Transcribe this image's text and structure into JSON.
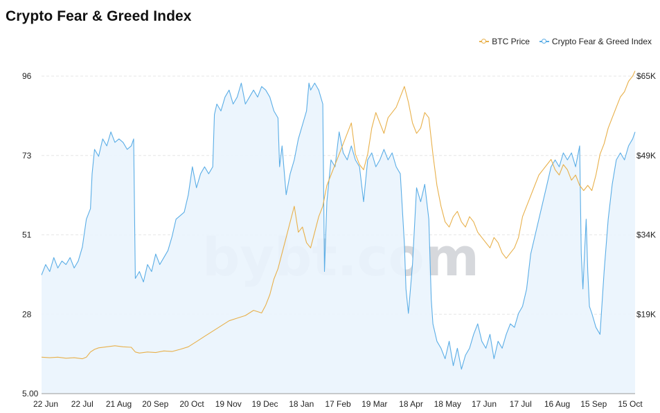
{
  "title": "Crypto Fear & Greed Index",
  "watermark": "bybt.com",
  "legend": [
    {
      "label": "BTC Price",
      "color": "#e8b04a"
    },
    {
      "label": "Crypto Fear & Greed Index",
      "color": "#5aade6"
    }
  ],
  "chart_data": {
    "type": "line",
    "title": "Crypto Fear & Greed Index",
    "x_tick_labels": [
      "22 Jun",
      "22 Jul",
      "21 Aug",
      "20 Sep",
      "20 Oct",
      "19 Nov",
      "19 Dec",
      "18 Jan",
      "17 Feb",
      "19 Mar",
      "18 Apr",
      "18 May",
      "17 Jun",
      "17 Jul",
      "16 Aug",
      "15 Sep",
      "15 Oct"
    ],
    "y_left": {
      "ticks": [
        "5.00",
        "28",
        "51",
        "73",
        "96"
      ],
      "range": [
        5,
        96
      ]
    },
    "y_right": {
      "ticks": [
        "$19K",
        "$34K",
        "$49K",
        "$65K"
      ],
      "range": [
        4000,
        65000
      ]
    },
    "grid": true,
    "legend_position": "top-right",
    "series": [
      {
        "name": "Crypto Fear & Greed Index",
        "axis": "left",
        "color": "#5aade6",
        "fill": true,
        "values": [
          [
            0,
            39
          ],
          [
            5,
            42
          ],
          [
            10,
            40
          ],
          [
            15,
            44
          ],
          [
            20,
            41
          ],
          [
            25,
            43
          ],
          [
            30,
            42
          ],
          [
            35,
            44
          ],
          [
            40,
            41
          ],
          [
            45,
            43
          ],
          [
            50,
            47
          ],
          [
            55,
            55
          ],
          [
            60,
            58
          ],
          [
            62,
            68
          ],
          [
            65,
            75
          ],
          [
            70,
            73
          ],
          [
            75,
            78
          ],
          [
            80,
            76
          ],
          [
            85,
            80
          ],
          [
            90,
            77
          ],
          [
            95,
            78
          ],
          [
            100,
            77
          ],
          [
            105,
            75
          ],
          [
            110,
            76
          ],
          [
            113,
            78
          ],
          [
            115,
            38
          ],
          [
            120,
            40
          ],
          [
            125,
            37
          ],
          [
            130,
            42
          ],
          [
            135,
            40
          ],
          [
            140,
            45
          ],
          [
            145,
            42
          ],
          [
            150,
            44
          ],
          [
            155,
            46
          ],
          [
            160,
            50
          ],
          [
            165,
            55
          ],
          [
            170,
            56
          ],
          [
            175,
            57
          ],
          [
            180,
            62
          ],
          [
            185,
            70
          ],
          [
            190,
            64
          ],
          [
            195,
            68
          ],
          [
            200,
            70
          ],
          [
            205,
            68
          ],
          [
            210,
            70
          ],
          [
            212,
            85
          ],
          [
            215,
            88
          ],
          [
            220,
            86
          ],
          [
            225,
            90
          ],
          [
            230,
            92
          ],
          [
            235,
            88
          ],
          [
            240,
            90
          ],
          [
            245,
            94
          ],
          [
            250,
            88
          ],
          [
            255,
            90
          ],
          [
            260,
            92
          ],
          [
            265,
            90
          ],
          [
            270,
            93
          ],
          [
            275,
            92
          ],
          [
            280,
            90
          ],
          [
            285,
            86
          ],
          [
            290,
            84
          ],
          [
            292,
            70
          ],
          [
            295,
            76
          ],
          [
            300,
            62
          ],
          [
            305,
            68
          ],
          [
            310,
            72
          ],
          [
            315,
            78
          ],
          [
            320,
            82
          ],
          [
            325,
            86
          ],
          [
            328,
            94
          ],
          [
            330,
            92
          ],
          [
            335,
            94
          ],
          [
            340,
            92
          ],
          [
            345,
            88
          ],
          [
            347,
            40
          ],
          [
            350,
            60
          ],
          [
            355,
            72
          ],
          [
            360,
            70
          ],
          [
            365,
            80
          ],
          [
            370,
            74
          ],
          [
            375,
            72
          ],
          [
            380,
            76
          ],
          [
            385,
            72
          ],
          [
            390,
            70
          ],
          [
            395,
            60
          ],
          [
            400,
            72
          ],
          [
            405,
            74
          ],
          [
            410,
            70
          ],
          [
            415,
            72
          ],
          [
            420,
            75
          ],
          [
            425,
            72
          ],
          [
            430,
            74
          ],
          [
            435,
            70
          ],
          [
            440,
            68
          ],
          [
            445,
            48
          ],
          [
            447,
            35
          ],
          [
            450,
            28
          ],
          [
            455,
            42
          ],
          [
            460,
            64
          ],
          [
            465,
            60
          ],
          [
            470,
            65
          ],
          [
            475,
            55
          ],
          [
            478,
            32
          ],
          [
            480,
            25
          ],
          [
            485,
            20
          ],
          [
            490,
            18
          ],
          [
            495,
            15
          ],
          [
            500,
            20
          ],
          [
            505,
            13
          ],
          [
            510,
            18
          ],
          [
            515,
            12
          ],
          [
            520,
            16
          ],
          [
            525,
            18
          ],
          [
            530,
            22
          ],
          [
            535,
            25
          ],
          [
            540,
            20
          ],
          [
            545,
            18
          ],
          [
            550,
            22
          ],
          [
            555,
            15
          ],
          [
            560,
            20
          ],
          [
            565,
            18
          ],
          [
            570,
            22
          ],
          [
            575,
            25
          ],
          [
            580,
            24
          ],
          [
            585,
            28
          ],
          [
            590,
            30
          ],
          [
            595,
            35
          ],
          [
            600,
            45
          ],
          [
            605,
            50
          ],
          [
            610,
            55
          ],
          [
            615,
            60
          ],
          [
            620,
            65
          ],
          [
            625,
            70
          ],
          [
            630,
            72
          ],
          [
            635,
            70
          ],
          [
            640,
            74
          ],
          [
            645,
            72
          ],
          [
            650,
            74
          ],
          [
            655,
            70
          ],
          [
            660,
            76
          ],
          [
            662,
            45
          ],
          [
            664,
            35
          ],
          [
            666,
            45
          ],
          [
            668,
            55
          ],
          [
            670,
            40
          ],
          [
            672,
            30
          ],
          [
            675,
            28
          ],
          [
            680,
            24
          ],
          [
            685,
            22
          ],
          [
            690,
            40
          ],
          [
            695,
            55
          ],
          [
            700,
            65
          ],
          [
            705,
            72
          ],
          [
            710,
            74
          ],
          [
            715,
            72
          ],
          [
            720,
            76
          ],
          [
            725,
            78
          ],
          [
            728,
            80
          ]
        ]
      },
      {
        "name": "BTC Price",
        "axis": "right",
        "color": "#e8b04a",
        "fill": false,
        "values": [
          [
            0,
            11000
          ],
          [
            10,
            10900
          ],
          [
            20,
            11000
          ],
          [
            30,
            10800
          ],
          [
            40,
            10900
          ],
          [
            50,
            10700
          ],
          [
            55,
            11000
          ],
          [
            60,
            12000
          ],
          [
            65,
            12500
          ],
          [
            70,
            12800
          ],
          [
            80,
            13000
          ],
          [
            90,
            13200
          ],
          [
            100,
            13000
          ],
          [
            110,
            12900
          ],
          [
            115,
            12000
          ],
          [
            120,
            11800
          ],
          [
            130,
            12000
          ],
          [
            140,
            11900
          ],
          [
            150,
            12200
          ],
          [
            160,
            12100
          ],
          [
            170,
            12500
          ],
          [
            180,
            13000
          ],
          [
            190,
            14000
          ],
          [
            200,
            15000
          ],
          [
            210,
            16000
          ],
          [
            220,
            17000
          ],
          [
            230,
            18000
          ],
          [
            240,
            18500
          ],
          [
            250,
            19000
          ],
          [
            260,
            20000
          ],
          [
            270,
            19500
          ],
          [
            275,
            21000
          ],
          [
            280,
            23000
          ],
          [
            285,
            26000
          ],
          [
            290,
            28000
          ],
          [
            295,
            31000
          ],
          [
            300,
            34000
          ],
          [
            305,
            37000
          ],
          [
            310,
            40000
          ],
          [
            315,
            35000
          ],
          [
            320,
            36000
          ],
          [
            325,
            33000
          ],
          [
            330,
            32000
          ],
          [
            335,
            35000
          ],
          [
            340,
            38000
          ],
          [
            345,
            40000
          ],
          [
            350,
            44000
          ],
          [
            355,
            46000
          ],
          [
            360,
            48000
          ],
          [
            365,
            50000
          ],
          [
            370,
            52000
          ],
          [
            375,
            54000
          ],
          [
            380,
            56000
          ],
          [
            385,
            50000
          ],
          [
            390,
            48000
          ],
          [
            395,
            47000
          ],
          [
            400,
            50000
          ],
          [
            405,
            55000
          ],
          [
            410,
            58000
          ],
          [
            415,
            56000
          ],
          [
            420,
            54000
          ],
          [
            425,
            57000
          ],
          [
            430,
            58000
          ],
          [
            435,
            59000
          ],
          [
            440,
            61000
          ],
          [
            445,
            63000
          ],
          [
            450,
            60000
          ],
          [
            455,
            56000
          ],
          [
            460,
            54000
          ],
          [
            465,
            55000
          ],
          [
            470,
            58000
          ],
          [
            475,
            57000
          ],
          [
            480,
            50000
          ],
          [
            485,
            44000
          ],
          [
            490,
            40000
          ],
          [
            495,
            37000
          ],
          [
            500,
            36000
          ],
          [
            505,
            38000
          ],
          [
            510,
            39000
          ],
          [
            515,
            37000
          ],
          [
            520,
            36000
          ],
          [
            525,
            38000
          ],
          [
            530,
            37000
          ],
          [
            535,
            35000
          ],
          [
            540,
            34000
          ],
          [
            545,
            33000
          ],
          [
            550,
            32000
          ],
          [
            555,
            34000
          ],
          [
            560,
            33000
          ],
          [
            565,
            31000
          ],
          [
            570,
            30000
          ],
          [
            575,
            31000
          ],
          [
            580,
            32000
          ],
          [
            585,
            34000
          ],
          [
            590,
            38000
          ],
          [
            595,
            40000
          ],
          [
            600,
            42000
          ],
          [
            605,
            44000
          ],
          [
            610,
            46000
          ],
          [
            615,
            47000
          ],
          [
            620,
            48000
          ],
          [
            625,
            49000
          ],
          [
            630,
            47000
          ],
          [
            635,
            46000
          ],
          [
            640,
            48000
          ],
          [
            645,
            47000
          ],
          [
            650,
            45000
          ],
          [
            655,
            46000
          ],
          [
            660,
            44000
          ],
          [
            665,
            43000
          ],
          [
            670,
            44000
          ],
          [
            675,
            43000
          ],
          [
            680,
            46000
          ],
          [
            685,
            50000
          ],
          [
            690,
            52000
          ],
          [
            695,
            55000
          ],
          [
            700,
            57000
          ],
          [
            705,
            59000
          ],
          [
            710,
            61000
          ],
          [
            715,
            62000
          ],
          [
            720,
            64000
          ],
          [
            725,
            65000
          ],
          [
            728,
            66000
          ]
        ]
      }
    ]
  }
}
